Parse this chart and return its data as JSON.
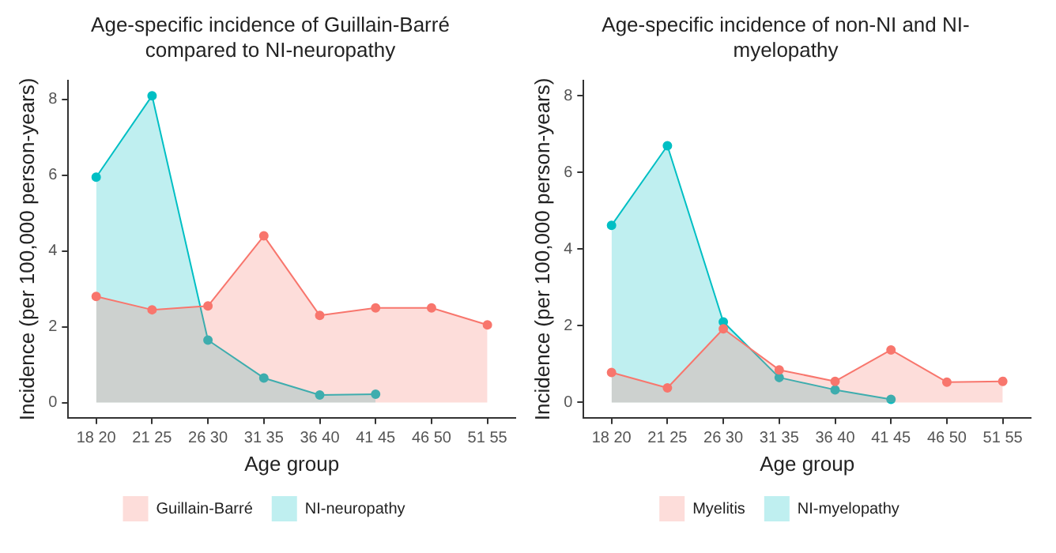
{
  "chart_data": [
    {
      "type": "area",
      "title": "Age-specific incidence of Guillain-Barré compared to NI-neuropathy",
      "xlabel": "Age group",
      "ylabel": "Incidence (per 100,000 person-years)",
      "categories": [
        "18 20",
        "21 25",
        "26 30",
        "31 35",
        "36 40",
        "41 45",
        "46 50",
        "51 55"
      ],
      "series": [
        {
          "name": "Guillain-Barré",
          "color": "#f8766d",
          "values": [
            2.8,
            2.45,
            2.55,
            4.4,
            2.3,
            2.5,
            2.5,
            2.05
          ]
        },
        {
          "name": "NI-neuropathy",
          "color": "#00bfc4",
          "values": [
            5.95,
            8.1,
            1.65,
            0.65,
            0.2,
            0.22,
            null,
            null
          ]
        }
      ],
      "ylim": [
        -0.4,
        8.5
      ],
      "yticks": [
        0,
        2,
        4,
        6,
        8
      ],
      "grid": false,
      "legend": "bottom",
      "marker": "circle"
    },
    {
      "type": "area",
      "title": "Age-specific incidence of non-NI and NI-myelopathy",
      "xlabel": "Age group",
      "ylabel": "Incidence (per 100,000 person-years)",
      "categories": [
        "18 20",
        "21 25",
        "26 30",
        "31 35",
        "36 40",
        "41 45",
        "46 50",
        "51 55"
      ],
      "series": [
        {
          "name": "Myelitis",
          "color": "#f8766d",
          "values": [
            0.78,
            0.38,
            1.92,
            0.85,
            0.55,
            1.37,
            0.53,
            0.55
          ]
        },
        {
          "name": "NI-myelopathy",
          "color": "#00bfc4",
          "values": [
            4.62,
            6.7,
            2.1,
            0.65,
            0.33,
            0.08,
            null,
            null
          ]
        }
      ],
      "ylim": [
        -0.4,
        8.4
      ],
      "yticks": [
        0,
        2,
        4,
        6,
        8
      ],
      "grid": false,
      "legend": "bottom",
      "marker": "circle"
    }
  ]
}
